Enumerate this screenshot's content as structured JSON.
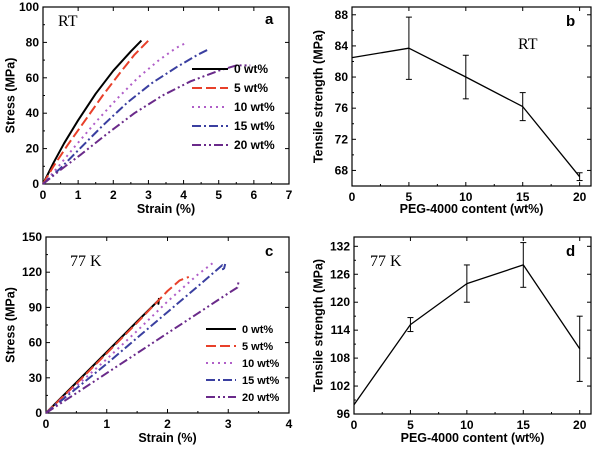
{
  "chart_data": [
    {
      "panel": "a",
      "type": "line",
      "annotation": "RT",
      "xlabel": "Strain (%)",
      "ylabel": "Stress (MPa)",
      "xlim": [
        0,
        7
      ],
      "ylim": [
        0,
        100
      ],
      "xticks": [
        0,
        1,
        2,
        3,
        4,
        5,
        6,
        7
      ],
      "yticks": [
        0,
        20,
        40,
        60,
        80,
        100
      ],
      "legend_position": "bottom-right",
      "series": [
        {
          "name": "0 wt%",
          "color": "#000000",
          "dash": "solid",
          "x": [
            0,
            0.3,
            0.6,
            1.0,
            1.5,
            2.0,
            2.5,
            2.8
          ],
          "y": [
            0,
            12,
            23,
            36,
            51,
            64,
            75,
            81
          ]
        },
        {
          "name": "5 wt%",
          "color": "#e8402a",
          "dash": "dashed",
          "x": [
            0,
            0.3,
            0.7,
            1.2,
            1.7,
            2.2,
            2.6,
            3.0
          ],
          "y": [
            0,
            10,
            22,
            36,
            50,
            63,
            73,
            81
          ]
        },
        {
          "name": "10 wt%",
          "color": "#b05ec8",
          "dash": "dotted",
          "x": [
            0,
            0.4,
            0.9,
            1.5,
            2.1,
            2.7,
            3.3,
            3.8,
            4.1
          ],
          "y": [
            0,
            9,
            21,
            35,
            48,
            60,
            70,
            77,
            80
          ]
        },
        {
          "name": "15 wt%",
          "color": "#3a3fa0",
          "dash": "dashdot",
          "x": [
            0,
            0.5,
            1.0,
            1.7,
            2.4,
            3.1,
            3.8,
            4.4,
            4.7
          ],
          "y": [
            0,
            9,
            19,
            33,
            46,
            57,
            66,
            73,
            76
          ]
        },
        {
          "name": "20 wt%",
          "color": "#6a2a8a",
          "dash": "dashdotdot",
          "x": [
            0,
            0.5,
            1.1,
            1.8,
            2.6,
            3.4,
            4.2,
            5.0,
            5.5,
            5.9
          ],
          "y": [
            0,
            8,
            17,
            28,
            40,
            50,
            58,
            64,
            67,
            67
          ]
        }
      ]
    },
    {
      "panel": "b",
      "type": "line",
      "annotation": "RT",
      "xlabel": "PEG-4000 content (wt%)",
      "ylabel": "Tensile strength (MPa)",
      "xlim": [
        0,
        21
      ],
      "ylim": [
        66,
        89
      ],
      "xticks": [
        0,
        5,
        10,
        15,
        20
      ],
      "yticks": [
        68,
        72,
        76,
        80,
        84,
        88
      ],
      "series": [
        {
          "x": [
            0,
            5,
            10,
            15,
            20
          ],
          "y": [
            82.5,
            83.7,
            80.0,
            76.2,
            67.2
          ],
          "err": [
            0,
            4.0,
            2.8,
            1.8,
            0.5
          ],
          "color": "#000000"
        }
      ]
    },
    {
      "panel": "c",
      "type": "line",
      "annotation": "77 K",
      "xlabel": "Strain (%)",
      "ylabel": "Stress (MPa)",
      "xlim": [
        0,
        4
      ],
      "ylim": [
        0,
        150
      ],
      "xticks": [
        0,
        1,
        2,
        3,
        4
      ],
      "yticks": [
        0,
        30,
        60,
        90,
        120,
        150
      ],
      "legend_position": "bottom-right",
      "series": [
        {
          "name": "0 wt%",
          "color": "#000000",
          "dash": "solid",
          "x": [
            0,
            0.5,
            1.0,
            1.5,
            1.85,
            1.85,
            1.86
          ],
          "y": [
            0,
            26,
            52,
            78,
            96,
            93,
            98
          ]
        },
        {
          "name": "5 wt%",
          "color": "#e8402a",
          "dash": "dashed",
          "x": [
            0,
            0.5,
            1.0,
            1.5,
            2.0,
            2.2,
            2.35
          ],
          "y": [
            0,
            25,
            51,
            77,
            104,
            113,
            116
          ]
        },
        {
          "name": "10 wt%",
          "color": "#b05ec8",
          "dash": "dotted",
          "x": [
            0,
            0.5,
            1.0,
            1.5,
            2.0,
            2.5,
            2.75
          ],
          "y": [
            0,
            23,
            46,
            70,
            95,
            118,
            128
          ]
        },
        {
          "name": "15 wt%",
          "color": "#3a3fa0",
          "dash": "dashdot",
          "x": [
            0,
            0.5,
            1.0,
            1.5,
            2.0,
            2.5,
            2.9,
            2.92,
            2.95
          ],
          "y": [
            0,
            21,
            42,
            64,
            86,
            108,
            126,
            121,
            127
          ]
        },
        {
          "name": "20 wt%",
          "color": "#6a2a8a",
          "dash": "dashdotdot",
          "x": [
            0,
            0.5,
            1.0,
            1.5,
            2.0,
            2.5,
            3.0,
            3.15,
            3.17
          ],
          "y": [
            0,
            17,
            34,
            51,
            68,
            85,
            102,
            107,
            112
          ]
        }
      ]
    },
    {
      "panel": "d",
      "type": "line",
      "annotation": "77 K",
      "xlabel": "PEG-4000 content (wt%)",
      "ylabel": "Tensile strength (MPa)",
      "xlim": [
        0,
        21
      ],
      "ylim": [
        96,
        134
      ],
      "xticks": [
        0,
        5,
        10,
        15,
        20
      ],
      "yticks": [
        96,
        102,
        108,
        114,
        120,
        126,
        132
      ],
      "series": [
        {
          "x": [
            0,
            5,
            10,
            15,
            20
          ],
          "y": [
            98,
            115.2,
            124.0,
            128.0,
            110.0
          ],
          "err": [
            0,
            1.5,
            4.0,
            4.8,
            7.0
          ],
          "color": "#000000"
        }
      ]
    }
  ]
}
